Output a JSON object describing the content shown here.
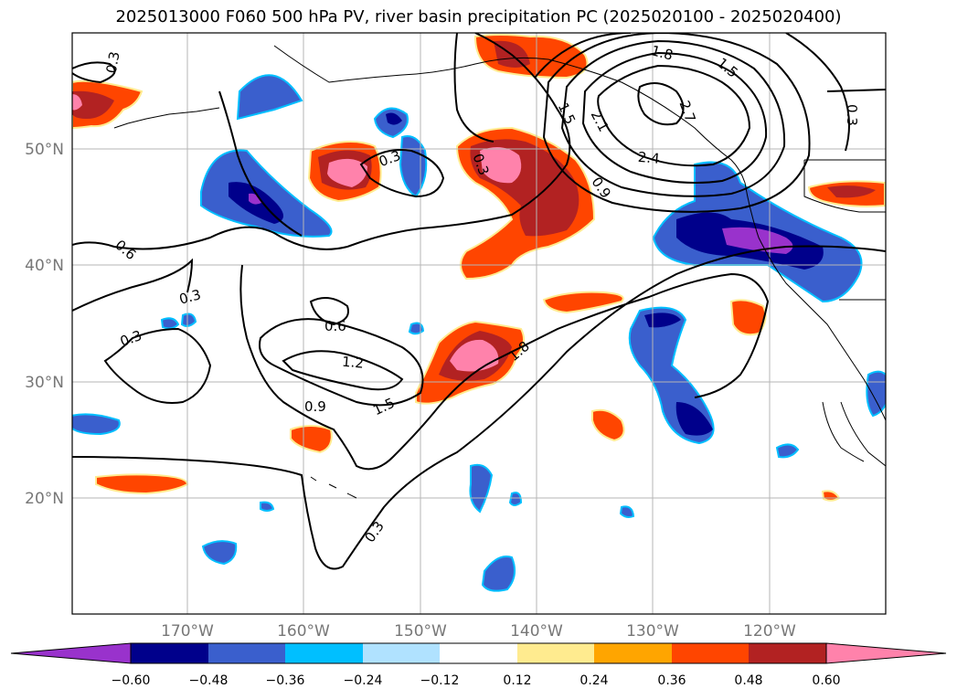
{
  "title": "2025013000 F060 500 hPa PV, river basin precipitation PC (2025020100 - 2025020400)",
  "map": {
    "lon_range": [
      -180,
      -110
    ],
    "lat_range": [
      10,
      60
    ],
    "lat_labels": [
      "20°N",
      "30°N",
      "40°N",
      "50°N"
    ],
    "lon_labels": [
      "170°W",
      "160°W",
      "150°W",
      "140°W",
      "130°W",
      "120°W"
    ],
    "contour_labels": [
      "0.3",
      "0.6",
      "0.9",
      "1.2",
      "1.5",
      "1.8",
      "2.1",
      "2.4",
      "2.7",
      "0.3",
      "0.3",
      "0.3",
      "0.3",
      "0.6",
      "0.6",
      "1.2",
      "1.5",
      "0.9",
      "1.5",
      "0.3",
      "0.9",
      "2.7"
    ],
    "colors": {
      "neg_extreme": "#9932cc",
      "neg_048": "#00008b",
      "neg_036": "#3a5fcd",
      "neg_024": "#00bfff",
      "neg_012": "#b0e2ff",
      "pos_012": "#ffeb8f",
      "pos_024": "#ffa500",
      "pos_036": "#ff4500",
      "pos_048": "#b22222",
      "pos_extreme": "#ff82ab"
    }
  },
  "colorbar": {
    "ticks": [
      "−0.60",
      "−0.48",
      "−0.36",
      "−0.24",
      "−0.12",
      "0.12",
      "0.24",
      "0.36",
      "0.48",
      "0.60"
    ],
    "colors": [
      "#9932cc",
      "#00008b",
      "#3a5fcd",
      "#00bfff",
      "#b0e2ff",
      "#ffffff",
      "#ffeb8f",
      "#ffa500",
      "#ff4500",
      "#b22222",
      "#ff82ab"
    ]
  }
}
